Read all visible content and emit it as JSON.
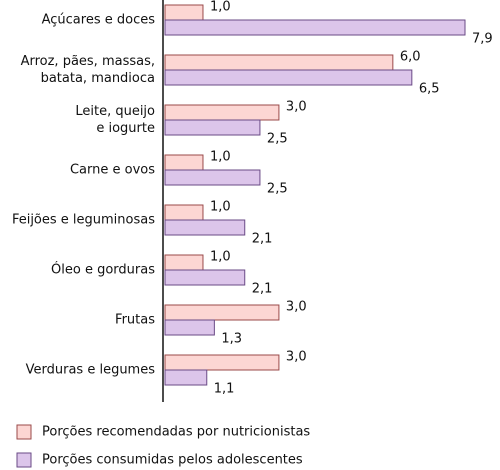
{
  "chart_data": {
    "type": "bar",
    "orientation": "horizontal",
    "categories": [
      "Açúcares e doces",
      "Arroz, pães, massas,\nbatata, mandioca",
      "Leite, queijo\ne iogurte",
      "Carne e ovos",
      "Feijões e leguminosas",
      "Óleo e gorduras",
      "Frutas",
      "Verduras e legumes"
    ],
    "series": [
      {
        "name": "Porções recomendadas por nutricionistas",
        "color": "#fcd6d3",
        "values": [
          1.0,
          6.0,
          3.0,
          1.0,
          1.0,
          1.0,
          3.0,
          3.0
        ],
        "value_labels": [
          "1,0",
          "6,0",
          "3,0",
          "1,0",
          "1,0",
          "1,0",
          "3,0",
          "3,0"
        ]
      },
      {
        "name": "Porções consumidas pelos adolescentes",
        "color": "#dcc5ea",
        "values": [
          7.9,
          6.5,
          2.5,
          2.5,
          2.1,
          2.1,
          1.3,
          1.1
        ],
        "value_labels": [
          "7,9",
          "6,5",
          "2,5",
          "2,5",
          "2,1",
          "2,1",
          "1,3",
          "1,1"
        ]
      }
    ]
  }
}
